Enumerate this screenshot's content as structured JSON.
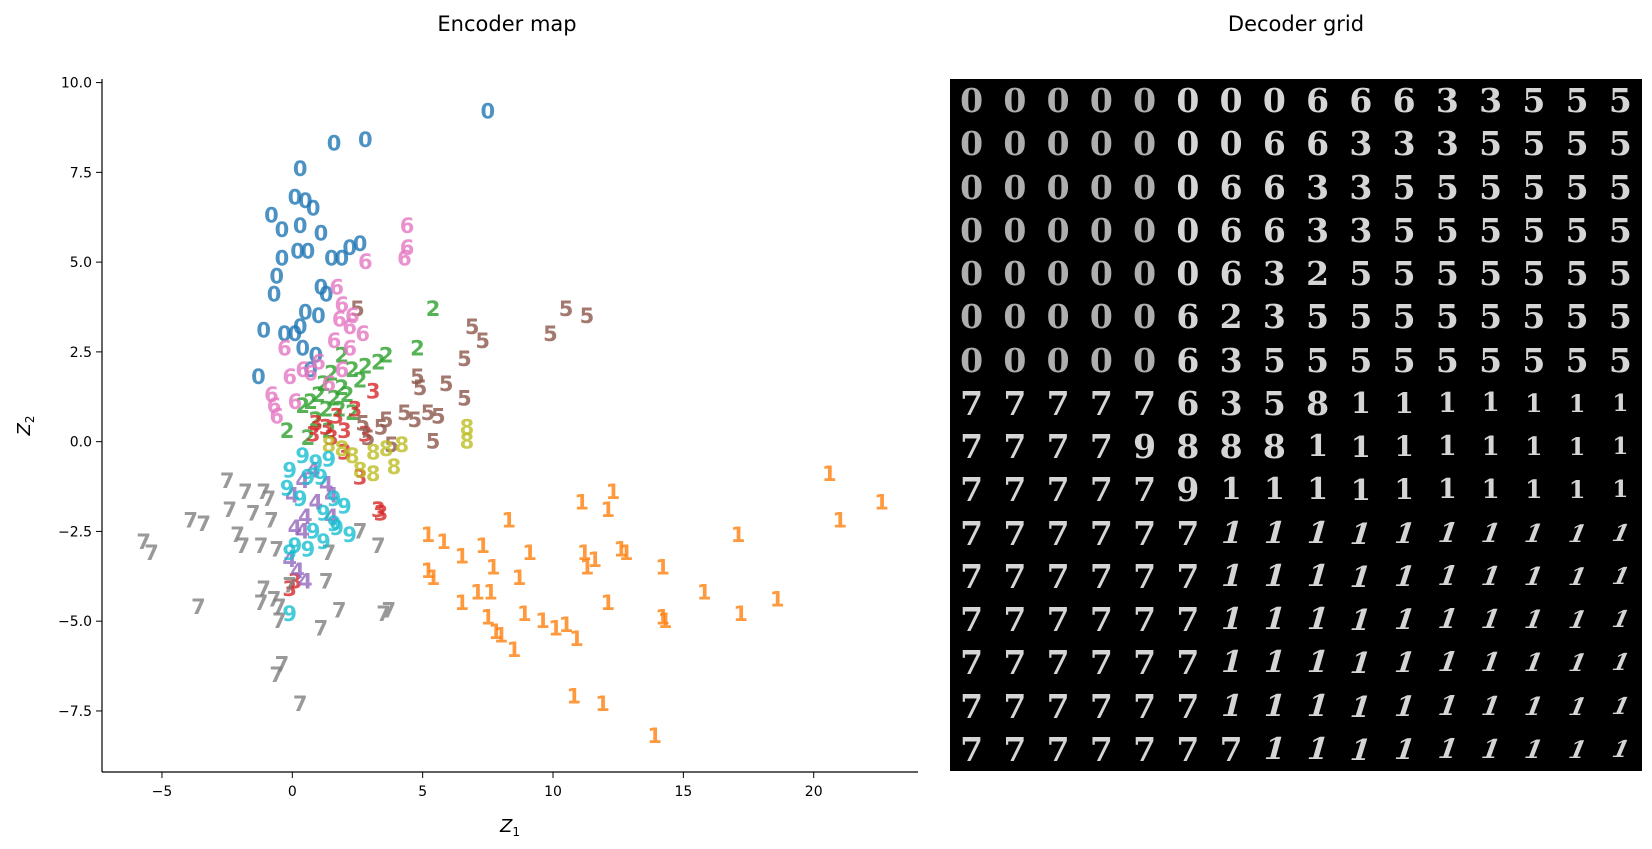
{
  "titles": {
    "encoder": "Encoder map",
    "decoder": "Decoder grid"
  },
  "chart_data": [
    {
      "type": "scatter",
      "title": "Encoder map",
      "xlabel": "Z_1",
      "ylabel": "Z_2",
      "xlim": [
        -7.3,
        24.0
      ],
      "ylim": [
        -9.2,
        10.1
      ],
      "xticks": [
        -5,
        0,
        5,
        10,
        15,
        20
      ],
      "yticks": [
        -7.5,
        -5.0,
        -2.5,
        0.0,
        2.5,
        5.0,
        7.5,
        10.0
      ],
      "xtick_labels": [
        "−5",
        "0",
        "5",
        "10",
        "15",
        "20"
      ],
      "ytick_labels": [
        "−7.5",
        "−5.0",
        "−2.5",
        "0.0",
        "2.5",
        "5.0",
        "7.5",
        "10.0"
      ],
      "grid": false,
      "marker": "digit glyph",
      "series": [
        {
          "label": "0",
          "color": "#1f77b4",
          "points": [
            [
              7.5,
              9.2
            ],
            [
              2.8,
              8.4
            ],
            [
              1.6,
              8.3
            ],
            [
              0.3,
              7.6
            ],
            [
              0.1,
              6.8
            ],
            [
              0.5,
              6.7
            ],
            [
              0.8,
              6.5
            ],
            [
              -0.8,
              6.3
            ],
            [
              -0.4,
              5.9
            ],
            [
              0.3,
              6.0
            ],
            [
              1.1,
              5.8
            ],
            [
              2.2,
              5.4
            ],
            [
              2.6,
              5.5
            ],
            [
              0.2,
              5.3
            ],
            [
              0.6,
              5.3
            ],
            [
              1.5,
              5.1
            ],
            [
              1.9,
              5.1
            ],
            [
              -0.4,
              5.1
            ],
            [
              -0.6,
              4.6
            ],
            [
              -0.7,
              4.1
            ],
            [
              1.1,
              4.3
            ],
            [
              1.3,
              4.1
            ],
            [
              0.5,
              3.6
            ],
            [
              1.0,
              3.5
            ],
            [
              0.3,
              3.2
            ],
            [
              0.1,
              3.0
            ],
            [
              -1.1,
              3.1
            ],
            [
              -0.3,
              3.0
            ],
            [
              0.4,
              2.6
            ],
            [
              0.9,
              2.4
            ],
            [
              -1.3,
              1.8
            ],
            [
              0.7,
              2.0
            ]
          ]
        },
        {
          "label": "1",
          "color": "#ff7f0e",
          "points": [
            [
              20.6,
              -0.9
            ],
            [
              22.6,
              -1.7
            ],
            [
              21.0,
              -2.2
            ],
            [
              12.3,
              -1.4
            ],
            [
              11.1,
              -1.7
            ],
            [
              12.1,
              -1.9
            ],
            [
              8.3,
              -2.2
            ],
            [
              5.2,
              -2.6
            ],
            [
              5.8,
              -2.8
            ],
            [
              7.3,
              -2.9
            ],
            [
              9.1,
              -3.1
            ],
            [
              6.5,
              -3.2
            ],
            [
              7.7,
              -3.5
            ],
            [
              11.2,
              -3.1
            ],
            [
              11.6,
              -3.3
            ],
            [
              12.6,
              -3.0
            ],
            [
              12.8,
              -3.1
            ],
            [
              11.3,
              -3.5
            ],
            [
              14.2,
              -3.5
            ],
            [
              17.1,
              -2.6
            ],
            [
              5.2,
              -3.6
            ],
            [
              5.4,
              -3.8
            ],
            [
              8.7,
              -3.8
            ],
            [
              7.1,
              -4.2
            ],
            [
              7.6,
              -4.2
            ],
            [
              6.5,
              -4.5
            ],
            [
              12.1,
              -4.5
            ],
            [
              15.8,
              -4.2
            ],
            [
              18.6,
              -4.4
            ],
            [
              7.5,
              -4.9
            ],
            [
              8.9,
              -4.8
            ],
            [
              9.6,
              -5.0
            ],
            [
              10.1,
              -5.2
            ],
            [
              10.5,
              -5.1
            ],
            [
              14.2,
              -4.9
            ],
            [
              14.3,
              -5.0
            ],
            [
              17.2,
              -4.8
            ],
            [
              7.8,
              -5.3
            ],
            [
              8.0,
              -5.4
            ],
            [
              10.9,
              -5.5
            ],
            [
              8.5,
              -5.8
            ],
            [
              10.8,
              -7.1
            ],
            [
              11.9,
              -7.3
            ],
            [
              13.9,
              -8.2
            ]
          ]
        },
        {
          "label": "2",
          "color": "#2ca02c",
          "points": [
            [
              5.4,
              3.7
            ],
            [
              4.8,
              2.6
            ],
            [
              3.6,
              2.4
            ],
            [
              3.3,
              2.2
            ],
            [
              2.8,
              2.1
            ],
            [
              1.9,
              2.4
            ],
            [
              2.3,
              2.0
            ],
            [
              1.5,
              1.9
            ],
            [
              2.6,
              1.7
            ],
            [
              1.2,
              1.6
            ],
            [
              1.9,
              1.5
            ],
            [
              1.0,
              1.3
            ],
            [
              1.6,
              1.2
            ],
            [
              2.1,
              1.3
            ],
            [
              0.7,
              1.1
            ],
            [
              1.3,
              0.9
            ],
            [
              0.4,
              1.0
            ],
            [
              1.8,
              0.9
            ],
            [
              2.3,
              0.8
            ],
            [
              0.9,
              0.6
            ],
            [
              -0.2,
              0.3
            ],
            [
              1.4,
              0.3
            ],
            [
              0.6,
              0.1
            ]
          ]
        },
        {
          "label": "3",
          "color": "#d62728",
          "points": [
            [
              3.1,
              1.4
            ],
            [
              2.4,
              0.9
            ],
            [
              1.7,
              0.7
            ],
            [
              0.9,
              0.5
            ],
            [
              1.3,
              0.4
            ],
            [
              2.0,
              0.3
            ],
            [
              0.8,
              0.2
            ],
            [
              1.5,
              0.1
            ],
            [
              2.8,
              0.2
            ],
            [
              2.0,
              -0.3
            ],
            [
              2.6,
              -1.0
            ],
            [
              3.4,
              -2.0
            ],
            [
              3.3,
              -1.9
            ],
            [
              0.1,
              -3.9
            ],
            [
              -0.1,
              -4.1
            ]
          ]
        },
        {
          "label": "4",
          "color": "#9467bd",
          "points": [
            [
              0.8,
              -0.8
            ],
            [
              0.4,
              -1.1
            ],
            [
              1.3,
              -1.2
            ],
            [
              0.0,
              -1.5
            ],
            [
              0.9,
              -1.7
            ],
            [
              0.5,
              -2.1
            ],
            [
              1.5,
              -2.1
            ],
            [
              0.1,
              -2.4
            ],
            [
              0.4,
              -2.5
            ],
            [
              -0.1,
              -3.3
            ],
            [
              0.2,
              -3.6
            ],
            [
              0.5,
              -3.9
            ],
            [
              1.5,
              -1.5
            ]
          ]
        },
        {
          "label": "5",
          "color": "#8c564b",
          "points": [
            [
              10.5,
              3.7
            ],
            [
              11.3,
              3.5
            ],
            [
              9.9,
              3.0
            ],
            [
              6.9,
              3.2
            ],
            [
              7.3,
              2.8
            ],
            [
              2.5,
              3.7
            ],
            [
              6.6,
              2.3
            ],
            [
              4.8,
              1.8
            ],
            [
              5.9,
              1.6
            ],
            [
              4.9,
              1.5
            ],
            [
              6.6,
              1.2
            ],
            [
              4.3,
              0.8
            ],
            [
              5.2,
              0.8
            ],
            [
              5.6,
              0.7
            ],
            [
              3.6,
              0.6
            ],
            [
              4.7,
              0.6
            ],
            [
              2.7,
              0.5
            ],
            [
              3.4,
              0.4
            ],
            [
              2.9,
              0.1
            ],
            [
              5.4,
              0.0
            ],
            [
              3.8,
              -0.1
            ]
          ]
        },
        {
          "label": "6",
          "color": "#e377c2",
          "points": [
            [
              4.4,
              6.0
            ],
            [
              4.4,
              5.4
            ],
            [
              4.3,
              5.1
            ],
            [
              2.8,
              5.0
            ],
            [
              1.7,
              4.3
            ],
            [
              1.9,
              3.8
            ],
            [
              2.3,
              3.5
            ],
            [
              1.8,
              3.4
            ],
            [
              2.2,
              3.2
            ],
            [
              2.7,
              3.0
            ],
            [
              1.6,
              2.8
            ],
            [
              2.2,
              2.6
            ],
            [
              -0.3,
              2.6
            ],
            [
              1.0,
              2.2
            ],
            [
              0.4,
              2.0
            ],
            [
              -0.1,
              1.8
            ],
            [
              0.7,
              1.9
            ],
            [
              1.4,
              1.6
            ],
            [
              -0.8,
              1.3
            ],
            [
              0.1,
              1.1
            ],
            [
              -0.7,
              1.0
            ],
            [
              -0.6,
              0.7
            ],
            [
              1.9,
              2.0
            ]
          ]
        },
        {
          "label": "7",
          "color": "#7f7f7f",
          "points": [
            [
              -2.5,
              -1.1
            ],
            [
              -1.8,
              -1.4
            ],
            [
              -1.1,
              -1.4
            ],
            [
              -0.9,
              -1.6
            ],
            [
              -3.9,
              -2.2
            ],
            [
              -3.4,
              -2.3
            ],
            [
              -2.4,
              -1.9
            ],
            [
              -1.5,
              -2.0
            ],
            [
              -0.8,
              -2.2
            ],
            [
              -2.1,
              -2.6
            ],
            [
              -5.7,
              -2.8
            ],
            [
              -5.4,
              -3.1
            ],
            [
              -1.9,
              -2.9
            ],
            [
              -1.2,
              -2.9
            ],
            [
              -0.6,
              -3.0
            ],
            [
              2.6,
              -2.5
            ],
            [
              3.3,
              -2.9
            ],
            [
              1.4,
              -3.1
            ],
            [
              -3.6,
              -4.6
            ],
            [
              -1.1,
              -4.1
            ],
            [
              -0.7,
              -4.4
            ],
            [
              -1.2,
              -4.5
            ],
            [
              -0.5,
              -4.6
            ],
            [
              -0.1,
              -4.0
            ],
            [
              1.3,
              -3.9
            ],
            [
              1.8,
              -4.7
            ],
            [
              3.7,
              -4.7
            ],
            [
              3.5,
              -4.8
            ],
            [
              -0.5,
              -5.0
            ],
            [
              1.1,
              -5.2
            ],
            [
              -0.4,
              -6.2
            ],
            [
              -0.6,
              -6.5
            ],
            [
              0.3,
              -7.3
            ]
          ]
        },
        {
          "label": "8",
          "color": "#bcbd22",
          "points": [
            [
              6.7,
              0.4
            ],
            [
              6.7,
              0.0
            ],
            [
              4.2,
              -0.1
            ],
            [
              3.6,
              -0.2
            ],
            [
              3.1,
              -0.3
            ],
            [
              2.3,
              -0.4
            ],
            [
              1.9,
              -0.2
            ],
            [
              1.4,
              -0.1
            ],
            [
              2.6,
              -0.8
            ],
            [
              3.1,
              -0.9
            ],
            [
              3.9,
              -0.7
            ]
          ]
        },
        {
          "label": "9",
          "color": "#17becf",
          "points": [
            [
              0.4,
              -0.4
            ],
            [
              0.9,
              -0.6
            ],
            [
              1.4,
              -0.5
            ],
            [
              -0.1,
              -0.8
            ],
            [
              0.6,
              -1.0
            ],
            [
              1.1,
              -1.0
            ],
            [
              -0.2,
              -1.3
            ],
            [
              0.3,
              -1.6
            ],
            [
              1.6,
              -1.6
            ],
            [
              2.0,
              -1.8
            ],
            [
              1.2,
              -2.0
            ],
            [
              1.6,
              -2.3
            ],
            [
              0.8,
              -2.5
            ],
            [
              0.1,
              -2.9
            ],
            [
              0.6,
              -3.0
            ],
            [
              -0.1,
              -3.1
            ],
            [
              2.2,
              -2.6
            ],
            [
              1.7,
              -2.4
            ],
            [
              -0.1,
              -4.8
            ],
            [
              1.2,
              -2.8
            ]
          ]
        }
      ]
    },
    {
      "type": "heatmap",
      "title": "Decoder grid",
      "rows": 16,
      "cols": 16,
      "cells": [
        "0000000066633555",
        "0000000663335555",
        "0000006633555555",
        "0000006633555555",
        "0000006325555555",
        "0000062355555555",
        "0000063555555555",
        "7777763581111111",
        "7777988811111111",
        "7777791111111111",
        "7777771111111111",
        "7777771111111111",
        "7777771111111111",
        "7777771111111111",
        "7777771111111111",
        "7777777111111111"
      ]
    }
  ]
}
